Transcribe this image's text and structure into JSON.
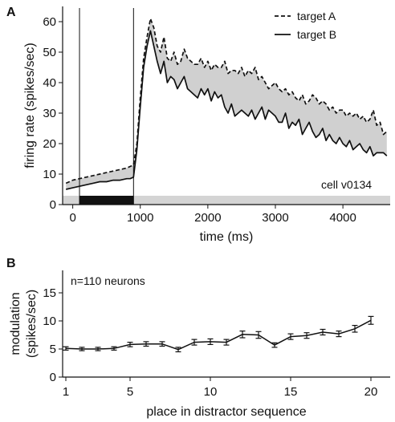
{
  "chart_data": [
    {
      "panel": "A",
      "type": "line",
      "xlabel": "time (ms)",
      "ylabel": "firing rate (spikes/sec)",
      "xlim": [
        -150,
        4700
      ],
      "ylim": [
        0,
        65
      ],
      "xticks": [
        0,
        1000,
        2000,
        3000,
        4000
      ],
      "yticks": [
        0,
        10,
        20,
        30,
        40,
        50,
        60
      ],
      "legend_position": "top-right",
      "annotation": "cell v0134",
      "shaded_difference": true,
      "event_markers_x": [
        100,
        900
      ],
      "stimulus_bar": {
        "start": 100,
        "end": 900,
        "color": "#111111"
      },
      "baseline_band_color": "#d4d4d4",
      "fill_color": "#d0d0d0",
      "series": [
        {
          "name": "target A",
          "line_style": "dashed",
          "x": [
            -100,
            0,
            100,
            200,
            300,
            400,
            500,
            600,
            700,
            800,
            850,
            900,
            950,
            1000,
            1050,
            1100,
            1150,
            1200,
            1250,
            1300,
            1350,
            1400,
            1450,
            1500,
            1550,
            1600,
            1650,
            1700,
            1750,
            1800,
            1850,
            1900,
            1950,
            2000,
            2050,
            2100,
            2150,
            2200,
            2250,
            2300,
            2350,
            2400,
            2450,
            2500,
            2550,
            2600,
            2650,
            2700,
            2750,
            2800,
            2850,
            2900,
            2950,
            3000,
            3050,
            3100,
            3150,
            3200,
            3250,
            3300,
            3350,
            3400,
            3450,
            3500,
            3550,
            3600,
            3650,
            3700,
            3750,
            3800,
            3850,
            3900,
            3950,
            4000,
            4050,
            4100,
            4150,
            4200,
            4250,
            4300,
            4350,
            4400,
            4450,
            4500,
            4550,
            4600,
            4650
          ],
          "y": [
            7,
            8,
            8.5,
            9,
            9.5,
            10,
            10.5,
            11,
            11.5,
            12,
            12.5,
            13,
            20,
            35,
            48,
            55,
            61,
            58,
            52,
            50,
            55,
            48,
            47,
            50,
            46,
            47,
            51,
            48,
            47,
            46,
            46,
            48,
            45,
            47,
            44,
            46,
            45,
            45,
            47,
            43,
            44,
            44,
            43,
            45,
            42,
            44,
            43,
            45,
            41,
            42,
            40,
            38,
            39,
            40,
            38,
            37,
            38,
            36,
            37,
            35,
            34,
            36,
            33,
            34,
            36,
            35,
            33,
            34,
            33,
            31,
            32,
            30,
            31,
            31,
            29,
            30,
            29,
            30,
            28,
            29,
            27,
            28,
            31,
            26,
            27,
            23,
            24
          ]
        },
        {
          "name": "target B",
          "line_style": "solid",
          "x": [
            -100,
            0,
            100,
            200,
            300,
            400,
            500,
            600,
            700,
            800,
            850,
            900,
            950,
            1000,
            1050,
            1100,
            1150,
            1200,
            1250,
            1300,
            1350,
            1400,
            1450,
            1500,
            1550,
            1600,
            1650,
            1700,
            1750,
            1800,
            1850,
            1900,
            1950,
            2000,
            2050,
            2100,
            2150,
            2200,
            2250,
            2300,
            2350,
            2400,
            2450,
            2500,
            2550,
            2600,
            2650,
            2700,
            2750,
            2800,
            2850,
            2900,
            2950,
            3000,
            3050,
            3100,
            3150,
            3200,
            3250,
            3300,
            3350,
            3400,
            3450,
            3500,
            3550,
            3600,
            3650,
            3700,
            3750,
            3800,
            3850,
            3900,
            3950,
            4000,
            4050,
            4100,
            4150,
            4200,
            4250,
            4300,
            4350,
            4400,
            4450,
            4500,
            4550,
            4600,
            4650
          ],
          "y": [
            5,
            5.5,
            6,
            6.5,
            7,
            7.5,
            7.5,
            8,
            8,
            8.5,
            8.5,
            9,
            18,
            32,
            45,
            52,
            57,
            52,
            47,
            43,
            47,
            40,
            42,
            41,
            38,
            40,
            42,
            38,
            37,
            36,
            35,
            38,
            36,
            38,
            34,
            37,
            35,
            36,
            32,
            30,
            33,
            29,
            30,
            31,
            30,
            29,
            31,
            28,
            30,
            32,
            28,
            31,
            30,
            29,
            27,
            27,
            30,
            25,
            27,
            26,
            28,
            23,
            25,
            27,
            24,
            22,
            23,
            25,
            21,
            23,
            21,
            20,
            22,
            20,
            19,
            21,
            18,
            19,
            20,
            18,
            17,
            19,
            16,
            17,
            17,
            17,
            16
          ]
        }
      ]
    },
    {
      "panel": "B",
      "type": "line",
      "xlabel": "place in distractor sequence",
      "ylabel": "modulation (spikes/sec)",
      "xlim": [
        0.8,
        21.2
      ],
      "ylim": [
        0,
        19
      ],
      "xticks": [
        1,
        5,
        10,
        15,
        20
      ],
      "yticks": [
        0,
        5,
        10,
        15
      ],
      "annotation": "n=110 neurons",
      "error_bars": true,
      "x": [
        1,
        2,
        3,
        4,
        5,
        6,
        7,
        8,
        9,
        10,
        11,
        12,
        13,
        14,
        15,
        16,
        17,
        18,
        19,
        20
      ],
      "values": [
        5.1,
        5.0,
        5.0,
        5.1,
        5.8,
        5.9,
        5.9,
        4.9,
        6.2,
        6.3,
        6.2,
        7.6,
        7.5,
        5.7,
        7.2,
        7.4,
        8.0,
        7.7,
        8.6,
        10.1
      ],
      "errors": [
        0.3,
        0.3,
        0.3,
        0.3,
        0.4,
        0.4,
        0.4,
        0.4,
        0.5,
        0.5,
        0.5,
        0.6,
        0.6,
        0.4,
        0.5,
        0.5,
        0.5,
        0.5,
        0.6,
        0.7
      ]
    }
  ]
}
